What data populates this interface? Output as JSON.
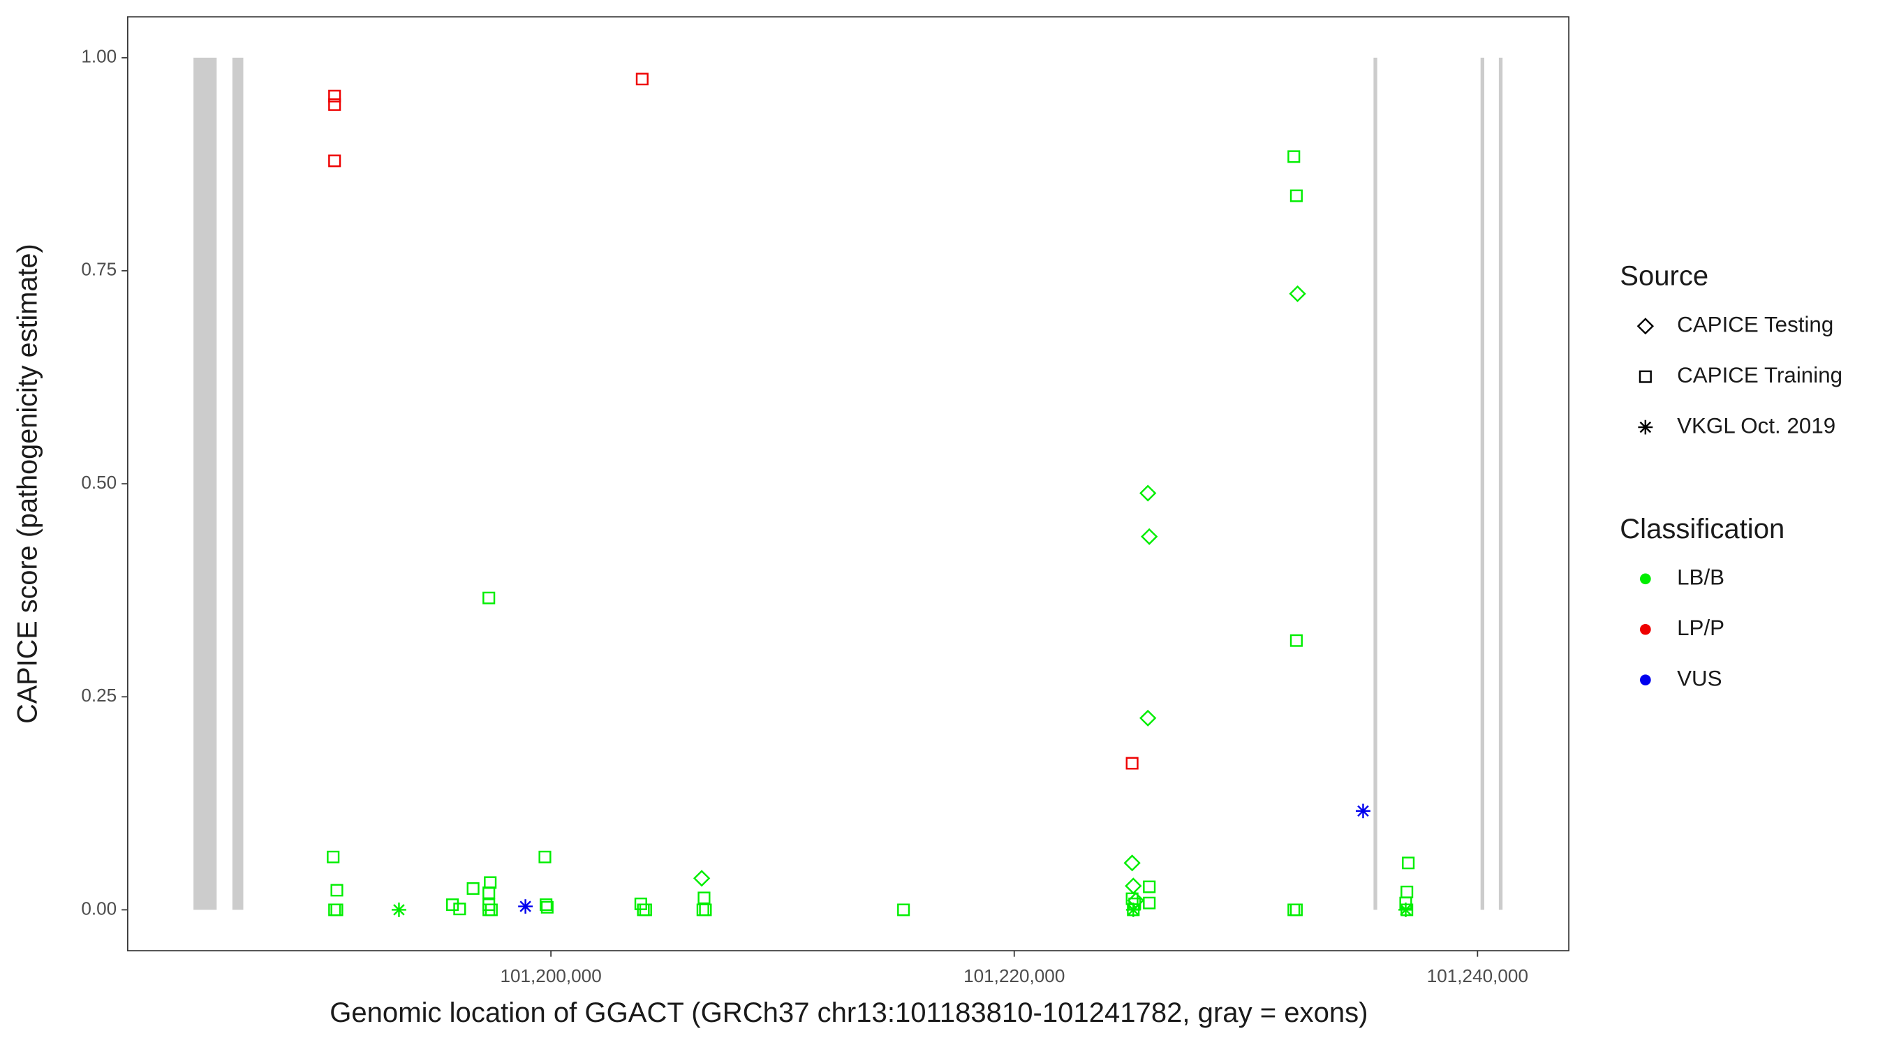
{
  "chart_data": {
    "type": "scatter",
    "x_label": "Genomic location of GGACT (GRCh37 chr13:101183810-101241782, gray = exons)",
    "y_label": "CAPICE score (pathogenicity estimate)",
    "xlim": [
      101181730,
      101243940
    ],
    "ylim": [
      -0.048,
      1.048
    ],
    "xticks": [
      {
        "value": 101200000,
        "label": "101,200,000"
      },
      {
        "value": 101220000,
        "label": "101,220,000"
      },
      {
        "value": 101240000,
        "label": "101,240,000"
      }
    ],
    "yticks": [
      {
        "value": 0,
        "label": "0.00"
      },
      {
        "value": 0.25,
        "label": "0.25"
      },
      {
        "value": 0.5,
        "label": "0.50"
      },
      {
        "value": 0.75,
        "label": "0.75"
      },
      {
        "value": 1,
        "label": "1.00"
      }
    ],
    "exon_color": "#cccccc",
    "exon_ylim": [
      0,
      1
    ],
    "exons": [
      [
        101184570,
        101185570
      ],
      [
        101186250,
        101186720
      ],
      [
        101235510,
        101235670
      ],
      [
        101240130,
        101240290
      ],
      [
        101240920,
        101241080
      ]
    ],
    "legends": [
      {
        "title": "Source",
        "items": [
          {
            "label": "CAPICE Testing",
            "shape": "diamond"
          },
          {
            "label": "CAPICE Training",
            "shape": "square"
          },
          {
            "label": "VKGL Oct. 2019",
            "shape": "star"
          }
        ]
      },
      {
        "title": "Classification",
        "items": [
          {
            "label": "LB/B",
            "color": "#00ee00"
          },
          {
            "label": "LP/P",
            "color": "#ee0000"
          },
          {
            "label": "VUS",
            "color": "#0000ee"
          }
        ]
      }
    ],
    "series": [
      {
        "source": "CAPICE Training",
        "classification": "LP/P",
        "x": [
          101190660,
          101190660,
          101190660,
          101203940,
          101225090
        ],
        "values": [
          0.955,
          0.945,
          0.879,
          0.975,
          0.172
        ]
      },
      {
        "source": "CAPICE Training",
        "classification": "LB/B",
        "x": [
          101190600,
          101190760,
          101190660,
          101190760,
          101195750,
          101196060,
          101196640,
          101197320,
          101197380,
          101197320,
          101197320,
          101197320,
          101197430,
          101199740,
          101199790,
          101199840,
          101203880,
          101203990,
          101204090,
          101206610,
          101206560,
          101206670,
          101215220,
          101225090,
          101225200,
          101225140,
          101225830,
          101225830,
          101232070,
          101232180,
          101232180,
          101232070,
          101232180,
          101237010,
          101236950,
          101236900,
          101236950
        ],
        "values": [
          0.062,
          0.023,
          0,
          0,
          0.006,
          0.001,
          0.025,
          0.366,
          0.032,
          0.02,
          0.006,
          0,
          0,
          0.062,
          0.006,
          0.003,
          0.007,
          0,
          0,
          0.014,
          0,
          0,
          0,
          0.013,
          0.007,
          0,
          0.027,
          0.008,
          0.884,
          0.838,
          0.316,
          0,
          0,
          0.055,
          0.021,
          0.008,
          0
        ]
      },
      {
        "source": "CAPICE Testing",
        "classification": "LB/B",
        "x": [
          101206510,
          101225770,
          101225830,
          101225770,
          101225090,
          101225140,
          101225250,
          101232230
        ],
        "values": [
          0.037,
          0.489,
          0.438,
          0.225,
          0.055,
          0.028,
          0.011,
          0.723
        ]
      },
      {
        "source": "VKGL Oct. 2019",
        "classification": "LB/B",
        "x": [
          101193440,
          101225140,
          101236900
        ],
        "values": [
          0,
          0,
          0
        ]
      },
      {
        "source": "VKGL Oct. 2019",
        "classification": "VUS",
        "x": [
          101198900,
          101235060
        ],
        "values": [
          0.004,
          0.116
        ]
      }
    ]
  }
}
